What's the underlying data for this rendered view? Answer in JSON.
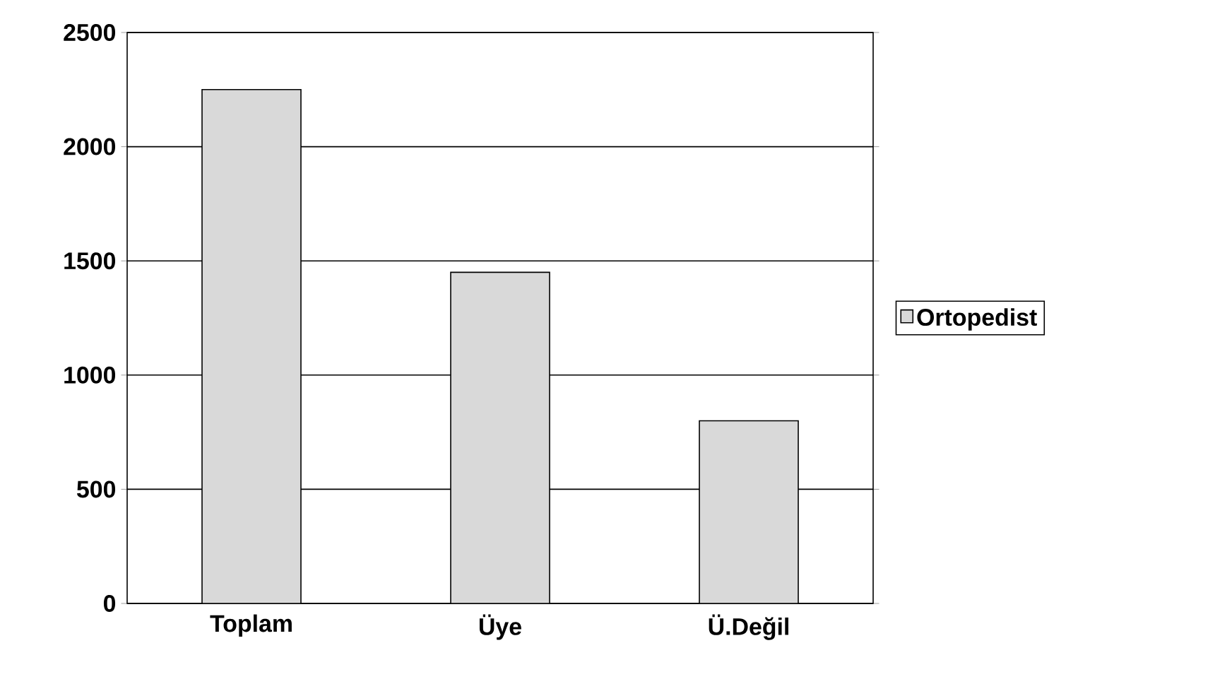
{
  "chart_data": {
    "type": "bar",
    "categories": [
      "Toplam",
      "Üye",
      "Ü.Değil"
    ],
    "series": [
      {
        "name": "Ortopedist",
        "color": "#d9d9d9",
        "values": [
          2250,
          1450,
          800
        ]
      }
    ],
    "ylim": [
      0,
      2500
    ],
    "yticks": [
      0,
      500,
      1000,
      1500,
      2000,
      2500
    ],
    "grid": "y",
    "legend": "right"
  }
}
